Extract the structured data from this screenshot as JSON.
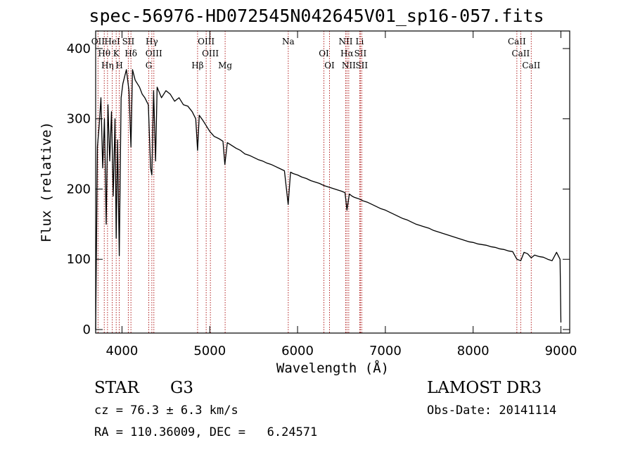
{
  "chart_data": {
    "type": "line",
    "title": "spec-56976-HD072545N042645V01_sp16-057.fits",
    "xlabel": "Wavelength (Å)",
    "ylabel": "Flux (relative)",
    "xlim": [
      3700,
      9100
    ],
    "ylim": [
      -5,
      425
    ],
    "x_ticks": [
      4000,
      5000,
      6000,
      7000,
      8000,
      9000
    ],
    "y_ticks": [
      0,
      100,
      200,
      300,
      400
    ],
    "grid": false,
    "line_color": "#000000",
    "marker_color": "#b22222",
    "series": [
      {
        "x": [
          3700,
          3720,
          3740,
          3760,
          3780,
          3800,
          3820,
          3840,
          3860,
          3880,
          3900,
          3920,
          3934,
          3950,
          3969,
          3990,
          4010,
          4030,
          4050,
          4080,
          4102,
          4120,
          4150,
          4200,
          4230,
          4260,
          4300,
          4326,
          4340,
          4360,
          4383,
          4400,
          4450,
          4500,
          4550,
          4600,
          4650,
          4700,
          4750,
          4800,
          4840,
          4861,
          4880,
          4920,
          4960,
          5000,
          5050,
          5100,
          5150,
          5172,
          5200,
          5250,
          5300,
          5350,
          5400,
          5450,
          5500,
          5550,
          5600,
          5650,
          5700,
          5750,
          5800,
          5850,
          5893,
          5920,
          5950,
          6000,
          6050,
          6100,
          6150,
          6200,
          6250,
          6300,
          6350,
          6400,
          6450,
          6500,
          6540,
          6563,
          6590,
          6620,
          6650,
          6700,
          6750,
          6800,
          6850,
          6900,
          6950,
          7000,
          7050,
          7100,
          7150,
          7200,
          7250,
          7300,
          7350,
          7400,
          7450,
          7500,
          7550,
          7600,
          7650,
          7700,
          7750,
          7800,
          7850,
          7900,
          7950,
          8000,
          8050,
          8100,
          8150,
          8200,
          8250,
          8300,
          8350,
          8400,
          8450,
          8498,
          8542,
          8580,
          8620,
          8662,
          8700,
          8750,
          8800,
          8850,
          8900,
          8950,
          8990,
          9000
        ],
        "y": [
          0,
          260,
          290,
          330,
          230,
          300,
          150,
          320,
          240,
          310,
          190,
          300,
          130,
          270,
          105,
          330,
          350,
          360,
          370,
          340,
          260,
          370,
          355,
          345,
          335,
          330,
          320,
          230,
          220,
          340,
          240,
          345,
          330,
          340,
          335,
          325,
          330,
          320,
          318,
          310,
          300,
          255,
          305,
          298,
          290,
          282,
          275,
          272,
          268,
          235,
          266,
          262,
          258,
          255,
          250,
          248,
          245,
          242,
          240,
          237,
          235,
          232,
          229,
          226,
          178,
          224,
          222,
          220,
          217,
          215,
          212,
          210,
          208,
          205,
          203,
          201,
          199,
          197,
          195,
          170,
          193,
          190,
          188,
          186,
          183,
          181,
          178,
          175,
          172,
          170,
          167,
          164,
          161,
          158,
          156,
          153,
          150,
          148,
          146,
          144,
          141,
          139,
          137,
          135,
          133,
          131,
          129,
          127,
          125,
          124,
          122,
          121,
          120,
          118,
          117,
          115,
          114,
          112,
          111,
          100,
          98,
          110,
          108,
          102,
          106,
          104,
          103,
          100,
          98,
          110,
          100,
          10
        ]
      }
    ],
    "line_markers": [
      {
        "wl": 3727,
        "label": "OII"
      },
      {
        "wl": 3798,
        "label": "Hθ"
      },
      {
        "wl": 3835,
        "label": "Hη"
      },
      {
        "wl": 3889,
        "label": "HeI"
      },
      {
        "wl": 3934,
        "label": "K"
      },
      {
        "wl": 3969,
        "label": "H"
      },
      {
        "wl": 4072,
        "label": "SII"
      },
      {
        "wl": 4102,
        "label": "Hδ"
      },
      {
        "wl": 4305,
        "label": "G"
      },
      {
        "wl": 4340,
        "label": "Hγ"
      },
      {
        "wl": 4363,
        "label": "OIII"
      },
      {
        "wl": 4861,
        "label": "Hβ"
      },
      {
        "wl": 4959,
        "label": "OIII"
      },
      {
        "wl": 5007,
        "label": "OIII"
      },
      {
        "wl": 5175,
        "label": "Mg"
      },
      {
        "wl": 5894,
        "label": "Na"
      },
      {
        "wl": 6300,
        "label": "OI"
      },
      {
        "wl": 6364,
        "label": "OI"
      },
      {
        "wl": 6548,
        "label": "NII"
      },
      {
        "wl": 6563,
        "label": "Hα"
      },
      {
        "wl": 6583,
        "label": "NII"
      },
      {
        "wl": 6708,
        "label": "Li"
      },
      {
        "wl": 6716,
        "label": "SII"
      },
      {
        "wl": 6731,
        "label": "SII"
      },
      {
        "wl": 8498,
        "label": "CaII"
      },
      {
        "wl": 8542,
        "label": "CaII"
      },
      {
        "wl": 8662,
        "label": "CaII"
      }
    ]
  },
  "info": {
    "object_class": "STAR",
    "subclass": "G3",
    "survey": "LAMOST DR3",
    "cz_line": "cz = 76.3 ± 6.3 km/s",
    "obs_date_line": "Obs-Date: 20141114",
    "radec_line": "RA = 110.36009, DEC =   6.24571"
  }
}
